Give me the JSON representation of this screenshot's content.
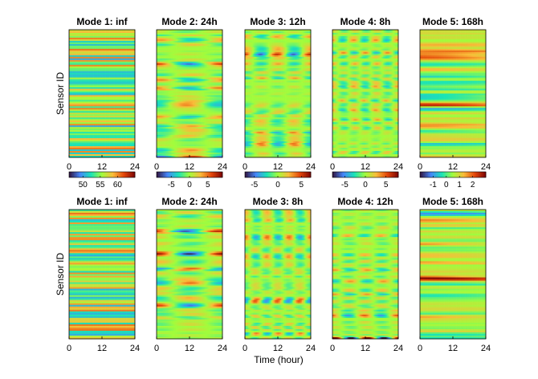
{
  "chart_data": [
    {
      "type": "heatmap",
      "row": "top",
      "ylabel": "Sensor ID",
      "xlabel": "",
      "panels": [
        {
          "title": "Mode 1: inf",
          "xticks": [
            0,
            12,
            24
          ],
          "xlim": [
            0,
            24
          ],
          "period_hours": null,
          "colorbar": {
            "ticks": [
              50,
              55,
              60
            ],
            "range": [
              46,
              65
            ]
          }
        },
        {
          "title": "Mode 2: 24h",
          "xticks": [
            0,
            12,
            24
          ],
          "xlim": [
            0,
            24
          ],
          "period_hours": 24,
          "colorbar": {
            "ticks": [
              -5,
              0,
              5
            ],
            "range": [
              -9,
              9
            ]
          }
        },
        {
          "title": "Mode 3: 12h",
          "xticks": [
            0,
            12,
            24
          ],
          "xlim": [
            0,
            24
          ],
          "period_hours": 12,
          "colorbar": {
            "ticks": [
              -5,
              0,
              5
            ],
            "range": [
              -7,
              7
            ]
          }
        },
        {
          "title": "Mode 4: 8h",
          "xticks": [
            0,
            12,
            24
          ],
          "xlim": [
            0,
            24
          ],
          "period_hours": 8,
          "colorbar": {
            "ticks": [
              -5,
              0,
              5
            ],
            "range": [
              -8,
              8
            ]
          }
        },
        {
          "title": "Mode 5: 168h",
          "xticks": [
            0,
            12,
            24
          ],
          "xlim": [
            0,
            24
          ],
          "period_hours": 168,
          "colorbar": {
            "ticks": [
              -1,
              0,
              1,
              2
            ],
            "range": [
              -2,
              3
            ]
          }
        }
      ]
    },
    {
      "type": "heatmap",
      "row": "bottom",
      "ylabel": "Sensor ID",
      "xlabel": "Time (hour)",
      "panels": [
        {
          "title": "Mode 1: inf",
          "xticks": [
            0,
            12,
            24
          ],
          "xlim": [
            0,
            24
          ],
          "period_hours": null
        },
        {
          "title": "Mode 2: 24h",
          "xticks": [
            0,
            12,
            24
          ],
          "xlim": [
            0,
            24
          ],
          "period_hours": 24
        },
        {
          "title": "Mode 3: 8h",
          "xticks": [
            0,
            12,
            24
          ],
          "xlim": [
            0,
            24
          ],
          "period_hours": 8
        },
        {
          "title": "Mode 4: 12h",
          "xticks": [
            0,
            12,
            24
          ],
          "xlim": [
            0,
            24
          ],
          "period_hours": 12
        },
        {
          "title": "Mode 5: 168h",
          "xticks": [
            0,
            12,
            24
          ],
          "xlim": [
            0,
            24
          ],
          "period_hours": 168
        }
      ]
    }
  ],
  "colormap": [
    "#30123b",
    "#4686fb",
    "#1ae4b6",
    "#a2fc3c",
    "#fabb39",
    "#e4460a",
    "#7a0403"
  ]
}
